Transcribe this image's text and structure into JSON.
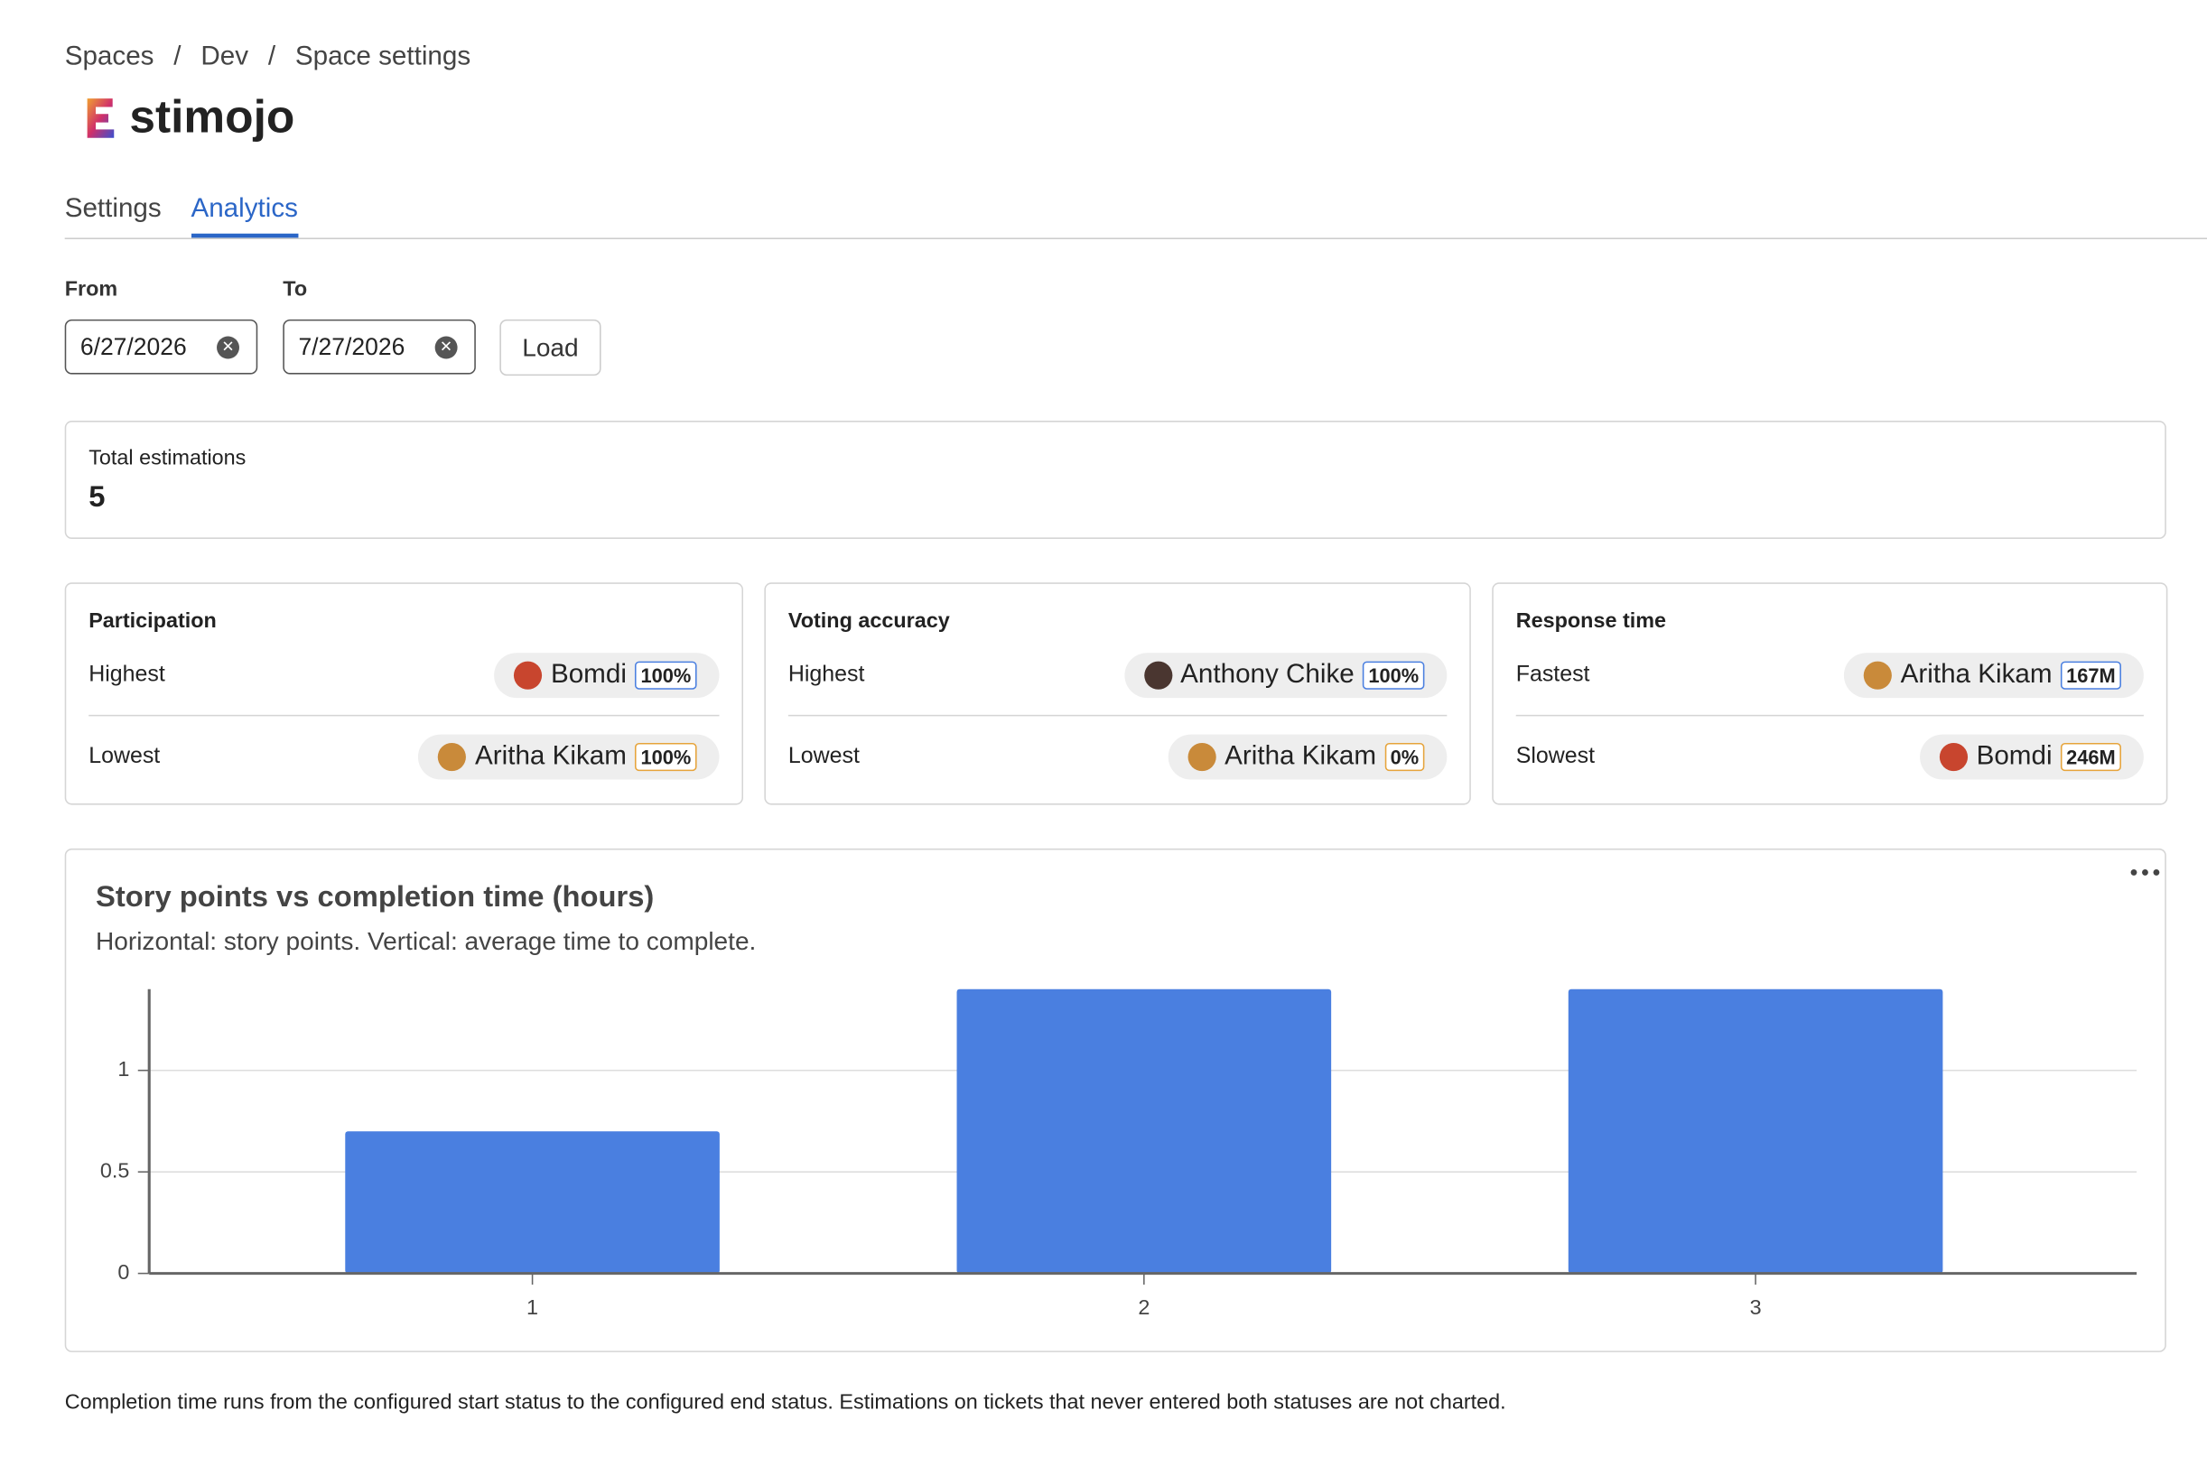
{
  "breadcrumb": {
    "items": [
      "Spaces",
      "Dev",
      "Space settings"
    ],
    "separator": "/"
  },
  "header": {
    "title": "stimojo"
  },
  "tabs": [
    "Settings",
    "Analytics"
  ],
  "filters": {
    "from": {
      "label": "From",
      "value": "6/27/2026"
    },
    "to": {
      "label": "To",
      "value": "7/27/2026"
    },
    "load_button": "Load"
  },
  "total": {
    "label": "Total estimations",
    "value": "5"
  },
  "cards": [
    {
      "title": "Participation",
      "rows": [
        {
          "label": "Highest",
          "name": "Bomdi",
          "badge": "100%"
        },
        {
          "label": "Lowest",
          "name": "Aritha Kikam",
          "badge": "100%"
        }
      ]
    },
    {
      "title": "Voting accuracy",
      "rows": [
        {
          "label": "Highest",
          "name": "Anthony Chike",
          "badge": "100%"
        },
        {
          "label": "Lowest",
          "name": "Aritha Kikam",
          "badge": "0%"
        }
      ]
    },
    {
      "title": "Response time",
      "rows": [
        {
          "label": "Fastest",
          "name": "Aritha Kikam",
          "badge": "167M"
        },
        {
          "label": "Slowest",
          "name": "Bomdi",
          "badge": "246M"
        }
      ]
    }
  ],
  "chart_data": {
    "type": "bar",
    "title": "Story points vs completion time (hours)",
    "subtitle": "Horizontal: story points. Vertical: average time to complete.",
    "categories": [
      "1",
      "2",
      "3"
    ],
    "values": [
      0.7,
      1.4,
      1.4
    ],
    "color": "#4a7fe0",
    "ylim": [
      0,
      1.4
    ],
    "yticks": [
      0,
      0.5,
      1
    ],
    "grid": true
  },
  "footnote": "Completion time runs from the configured start status to the configured end status. Estimations on tickets that never entered both statuses are not charted."
}
